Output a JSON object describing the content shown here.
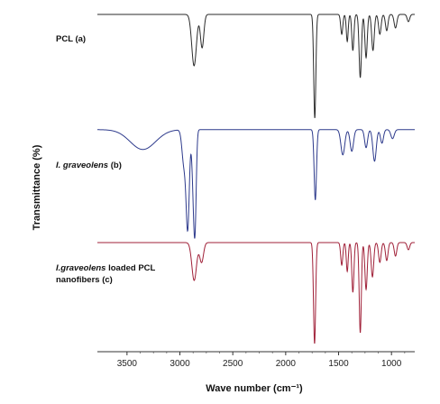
{
  "chart_data": {
    "type": "line",
    "xlabel": "Wave number (cm⁻¹)",
    "ylabel": "Transmittance (%)",
    "xlim": [
      3780,
      780
    ],
    "x_reversed": true,
    "y_ticks_shown": false,
    "grid": false,
    "x_ticks": [
      {
        "value": 3500,
        "label": "3500"
      },
      {
        "value": 3000,
        "label": "3000"
      },
      {
        "value": 2500,
        "label": "2500"
      },
      {
        "value": 2000,
        "label": "2000"
      },
      {
        "value": 1500,
        "label": "1500"
      },
      {
        "value": 1000,
        "label": "1000"
      }
    ],
    "series": [
      {
        "label_parts": [
          {
            "text": "PCL (a)",
            "italic": false
          }
        ],
        "color": "#2b2b2b",
        "baseline": 0,
        "peaks": [
          {
            "x": 2866,
            "depth": 57,
            "width": 22
          },
          {
            "x": 2790,
            "depth": 37,
            "width": 16
          },
          {
            "x": 1725,
            "depth": 115,
            "width": 10
          },
          {
            "x": 1470,
            "depth": 22,
            "width": 10
          },
          {
            "x": 1418,
            "depth": 30,
            "width": 9
          },
          {
            "x": 1365,
            "depth": 40,
            "width": 10
          },
          {
            "x": 1295,
            "depth": 70,
            "width": 11
          },
          {
            "x": 1240,
            "depth": 48,
            "width": 11
          },
          {
            "x": 1175,
            "depth": 40,
            "width": 12
          },
          {
            "x": 1110,
            "depth": 22,
            "width": 12
          },
          {
            "x": 1045,
            "depth": 18,
            "width": 12
          },
          {
            "x": 962,
            "depth": 15,
            "width": 13
          },
          {
            "x": 840,
            "depth": 8,
            "width": 12
          }
        ]
      },
      {
        "label_parts": [
          {
            "text": "I. graveolens",
            "italic": true
          },
          {
            "text": " (b)",
            "italic": false
          }
        ],
        "color": "#2d3a8c",
        "baseline": 15,
        "peaks": [
          {
            "x": 3350,
            "depth": 22,
            "width": 120
          },
          {
            "x": 2962,
            "depth": 38,
            "width": 18
          },
          {
            "x": 2926,
            "depth": 107,
            "width": 15
          },
          {
            "x": 2870,
            "depth": 72,
            "width": 14
          },
          {
            "x": 2855,
            "depth": 72,
            "width": 11
          },
          {
            "x": 1720,
            "depth": 78,
            "width": 11
          },
          {
            "x": 1460,
            "depth": 28,
            "width": 18
          },
          {
            "x": 1375,
            "depth": 24,
            "width": 16
          },
          {
            "x": 1240,
            "depth": 20,
            "width": 14
          },
          {
            "x": 1160,
            "depth": 35,
            "width": 16
          },
          {
            "x": 1090,
            "depth": 15,
            "width": 14
          },
          {
            "x": 990,
            "depth": 10,
            "width": 16
          }
        ]
      },
      {
        "label_parts": [
          {
            "text": "I.graveolens",
            "italic": true
          },
          {
            "text": " loaded PCL",
            "italic": false
          },
          {
            "text": "\nnanofibers (c)",
            "italic": false
          }
        ],
        "color": "#a02038",
        "baseline": 0,
        "peaks": [
          {
            "x": 2865,
            "depth": 42,
            "width": 22
          },
          {
            "x": 2795,
            "depth": 22,
            "width": 18
          },
          {
            "x": 1727,
            "depth": 112,
            "width": 10
          },
          {
            "x": 1470,
            "depth": 25,
            "width": 10
          },
          {
            "x": 1418,
            "depth": 32,
            "width": 9
          },
          {
            "x": 1365,
            "depth": 55,
            "width": 10
          },
          {
            "x": 1295,
            "depth": 100,
            "width": 10
          },
          {
            "x": 1240,
            "depth": 52,
            "width": 11
          },
          {
            "x": 1180,
            "depth": 38,
            "width": 12
          },
          {
            "x": 1110,
            "depth": 22,
            "width": 12
          },
          {
            "x": 1045,
            "depth": 20,
            "width": 12
          },
          {
            "x": 962,
            "depth": 15,
            "width": 12
          },
          {
            "x": 840,
            "depth": 8,
            "width": 12
          }
        ]
      }
    ]
  }
}
